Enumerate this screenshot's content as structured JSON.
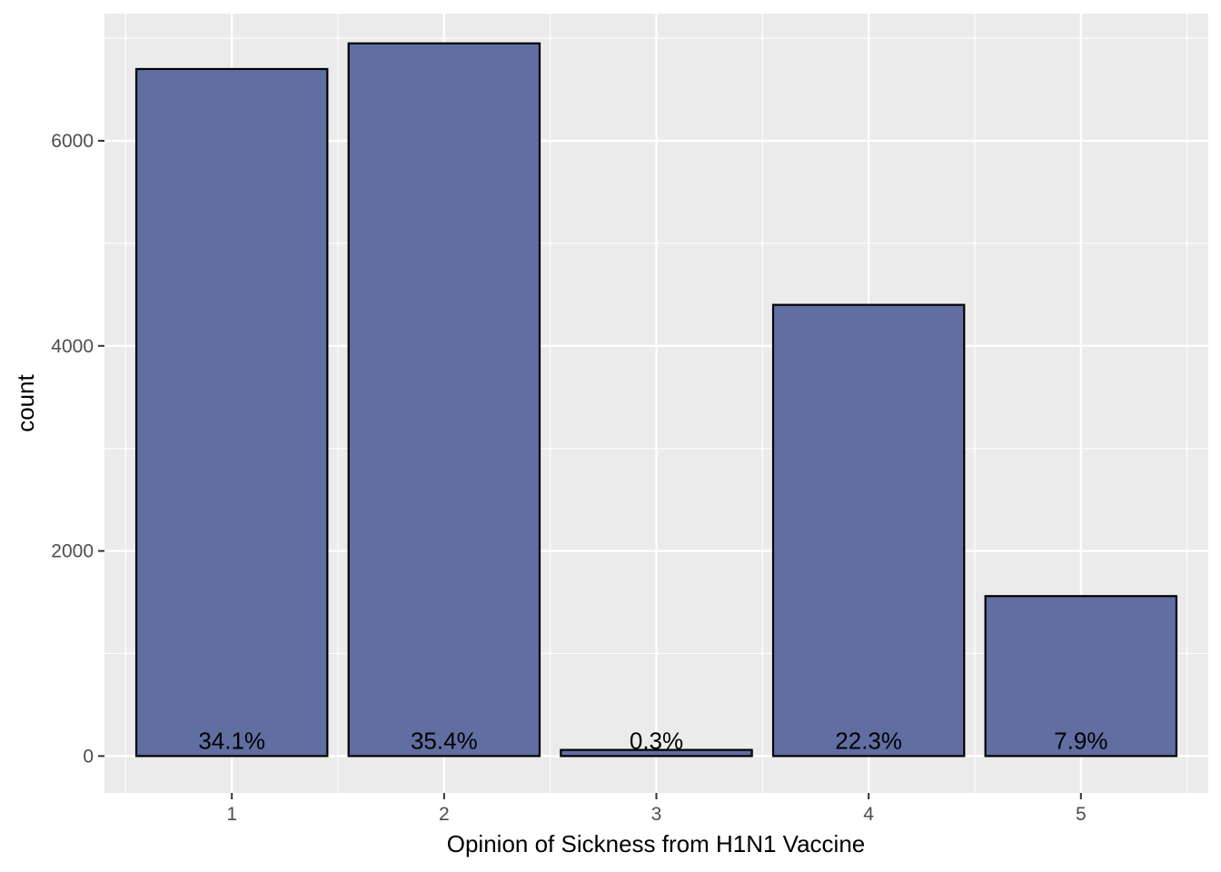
{
  "chart_data": {
    "type": "bar",
    "categories": [
      "1",
      "2",
      "3",
      "4",
      "5"
    ],
    "values": [
      6700,
      6950,
      60,
      4400,
      1560
    ],
    "labels": [
      "34.1%",
      "35.4%",
      "0.3%",
      "22.3%",
      "7.9%"
    ],
    "xlabel": "Opinion of Sickness from H1N1 Vaccine",
    "ylabel": "count",
    "ylim": [
      -360,
      7240
    ],
    "yticks": [
      0,
      2000,
      4000,
      6000
    ],
    "ytick_labels": [
      "0",
      "2000",
      "4000",
      "6000"
    ],
    "grid": true,
    "colors": {
      "bar_fill": "#606ea2",
      "bar_stroke": "#000000",
      "panel_bg": "#ebebeb",
      "grid": "#ffffff"
    }
  }
}
